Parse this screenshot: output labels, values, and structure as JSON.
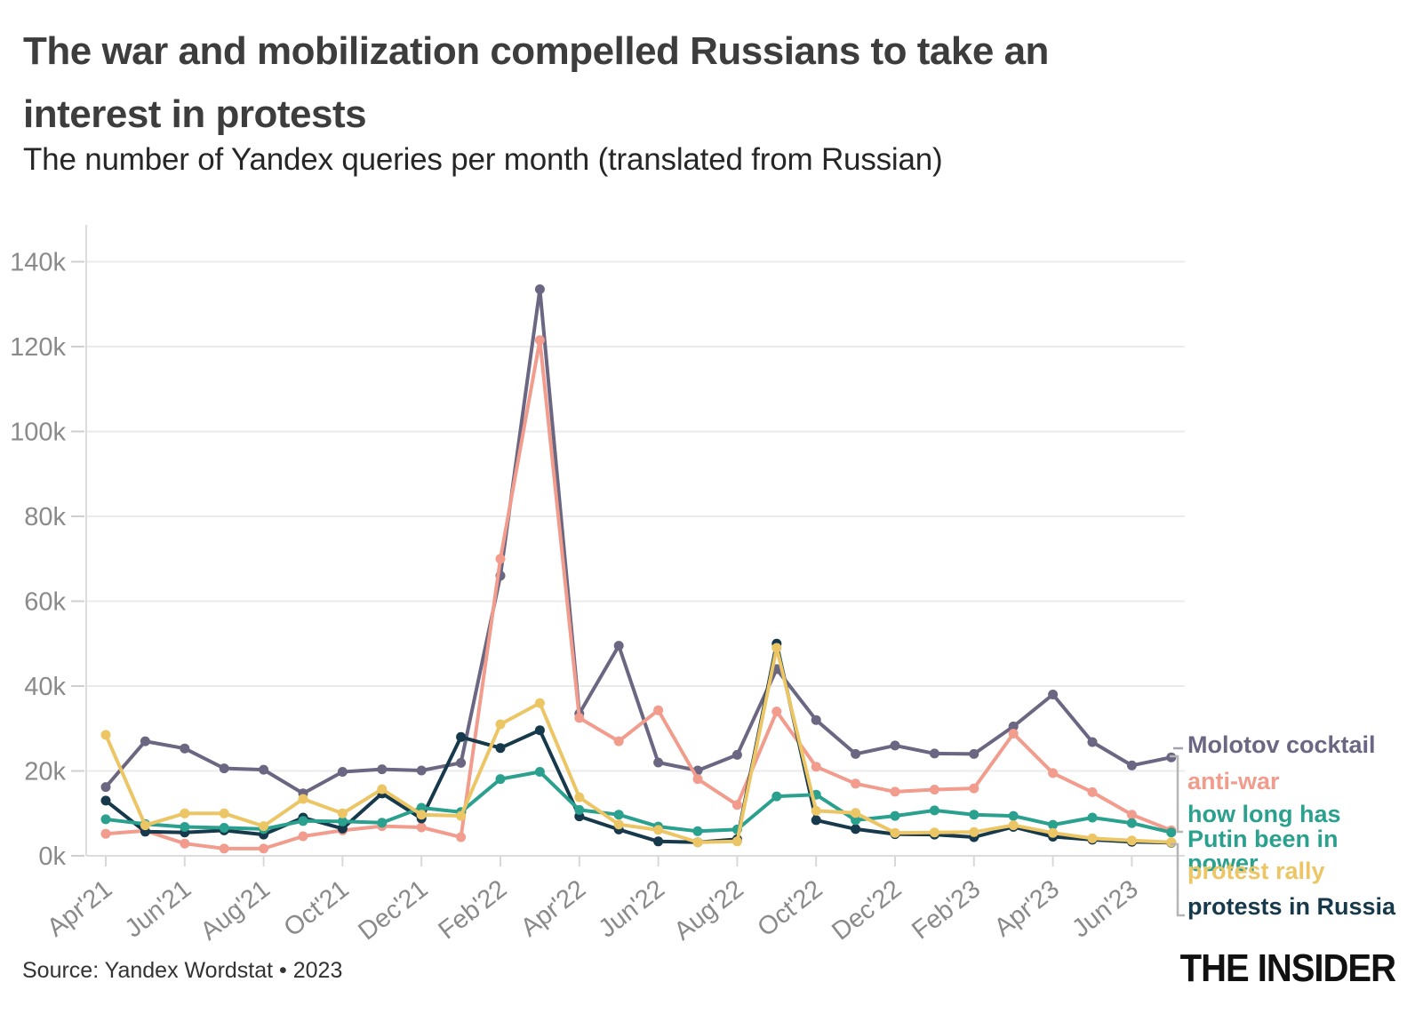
{
  "header": {
    "title_line1": "The war and mobilization compelled Russians to take an",
    "title_line2": "interest in protests",
    "subtitle": "The number of Yandex queries per month (translated from Russian)"
  },
  "footer": {
    "source": "Source: Yandex Wordstat • 2023",
    "logo": "THE INSIDER"
  },
  "colors": {
    "grid": "#ebebeb",
    "axis": "#dcdcdc",
    "tick_text": "#8a8a8a",
    "leader_lines": "#b5b5b5",
    "title_text": "#3d3d3d"
  },
  "chart_data": {
    "type": "line",
    "title": "The war and mobilization compelled Russians to take an interest in protests",
    "subtitle": "The number of Yandex queries per month (translated from Russian)",
    "values_unit": "thousands of queries per month",
    "ylim_k": [
      0,
      140
    ],
    "grid": "horizontal",
    "legend_position": "right",
    "x": [
      "Apr'21",
      "May'21",
      "Jun'21",
      "Jul'21",
      "Aug'21",
      "Sep'21",
      "Oct'21",
      "Nov'21",
      "Dec'21",
      "Jan'22",
      "Feb'22",
      "Mar'22",
      "Apr'22",
      "May'22",
      "Jun'22",
      "Jul'22",
      "Aug'22",
      "Sep'22",
      "Oct'22",
      "Nov'22",
      "Dec'22",
      "Jan'23",
      "Feb'23",
      "Mar'23",
      "Apr'23",
      "May'23",
      "Jun'23",
      "Jul'23"
    ],
    "x_tick_labels": [
      "Apr'21",
      "Jun'21",
      "Aug'21",
      "Oct'21",
      "Dec'21",
      "Feb'22",
      "Apr'22",
      "Jun'22",
      "Aug'22",
      "Oct'22",
      "Dec'22",
      "Feb'23",
      "Apr'23",
      "Jun'23"
    ],
    "ytick_values_k": [
      0,
      20,
      40,
      60,
      80,
      100,
      120,
      140
    ],
    "ytick_labels": [
      "0k",
      "20k",
      "40k",
      "60k",
      "80k",
      "100k",
      "120k",
      "140k"
    ],
    "series": [
      {
        "name": "Molotov cocktail",
        "color": "#6b6681",
        "values_k": [
          16.2,
          27.0,
          25.3,
          20.6,
          20.3,
          14.7,
          19.8,
          20.4,
          20.1,
          21.9,
          66.0,
          133.5,
          33.5,
          49.5,
          22.0,
          20.1,
          23.8,
          44.0,
          32.0,
          24.0,
          26.0,
          24.1,
          24.0,
          30.5,
          38.0,
          26.8,
          21.3,
          23.2
        ]
      },
      {
        "name": "anti-war",
        "color": "#f19c8d",
        "values_k": [
          5.2,
          5.9,
          2.9,
          1.7,
          1.7,
          4.6,
          6.0,
          7.0,
          6.7,
          4.4,
          70.0,
          121.5,
          32.5,
          27.0,
          34.3,
          18.1,
          12.0,
          34.0,
          21.0,
          17.0,
          15.1,
          15.6,
          15.9,
          28.8,
          19.5,
          15.0,
          9.7,
          6.0
        ]
      },
      {
        "name": "how long has Putin been in power",
        "color": "#2aa08e",
        "values_k": [
          8.6,
          7.5,
          6.8,
          6.6,
          6.3,
          8.2,
          8.1,
          7.8,
          11.3,
          10.3,
          18.1,
          19.8,
          10.8,
          9.7,
          6.9,
          5.8,
          6.2,
          14.0,
          14.4,
          8.4,
          9.4,
          10.7,
          9.7,
          9.4,
          7.3,
          9.0,
          7.7,
          5.5
        ]
      },
      {
        "name": "protest rally",
        "color": "#ecc565",
        "values_k": [
          28.5,
          7.2,
          10.0,
          10.0,
          7.0,
          13.4,
          10.0,
          15.7,
          9.7,
          9.4,
          31.0,
          36.0,
          13.8,
          7.4,
          6.1,
          3.2,
          3.4,
          49.0,
          10.6,
          10.1,
          5.4,
          5.5,
          5.6,
          7.2,
          5.4,
          4.1,
          3.6,
          3.2
        ]
      },
      {
        "name": "protests in Russia",
        "color": "#17394c",
        "values_k": [
          13.0,
          5.7,
          5.5,
          6.0,
          5.0,
          9.0,
          6.4,
          14.7,
          8.8,
          28.0,
          25.4,
          29.6,
          9.3,
          6.2,
          3.4,
          3.2,
          3.9,
          50.0,
          8.4,
          6.3,
          5.1,
          5.0,
          4.4,
          6.8,
          4.5,
          3.8,
          3.3,
          3.1
        ]
      }
    ]
  }
}
